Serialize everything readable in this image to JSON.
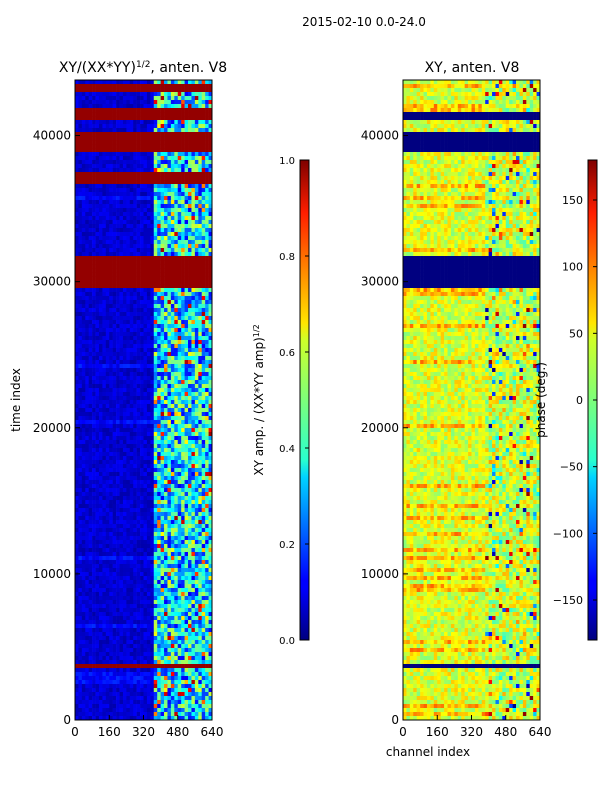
{
  "suptitle": "2015-02-10 0.0-24.0",
  "chart_data": [
    {
      "type": "heatmap",
      "title": "XY/(XX*YY)",
      "title_superscript": "1/2",
      "title_suffix": ", anten. V8",
      "xlabel": "",
      "ylabel": "time index",
      "xlim": [
        0,
        640
      ],
      "ylim": [
        0,
        43800
      ],
      "xticks": [
        "0",
        "160",
        "320",
        "480",
        "640"
      ],
      "yticks": [
        "0",
        "10000",
        "20000",
        "30000",
        "40000"
      ],
      "colormap": "jet",
      "colorbar": {
        "label": "XY amp. / (XX*YY amp)",
        "label_superscript": "1/2",
        "range": [
          0.0,
          1.0
        ],
        "ticks": [
          "0.0",
          "0.2",
          "0.4",
          "0.6",
          "0.8",
          "1.0"
        ]
      },
      "saturated_time_bands": [
        [
          3500,
          3900
        ],
        [
          29500,
          31800
        ],
        [
          36800,
          37500
        ],
        [
          38900,
          40300
        ],
        [
          41000,
          41800
        ],
        [
          43100,
          43500
        ]
      ],
      "active_channel_range": [
        370,
        640
      ]
    },
    {
      "type": "heatmap",
      "title": "XY, anten. V8",
      "xlabel": "channel index",
      "ylabel": "",
      "xlim": [
        0,
        640
      ],
      "ylim": [
        0,
        43800
      ],
      "xticks": [
        "0",
        "160",
        "320",
        "480",
        "640"
      ],
      "yticks": [
        "0",
        "10000",
        "20000",
        "30000",
        "40000"
      ],
      "colormap": "jet",
      "colorbar": {
        "label": "phase (deg.)",
        "range": [
          -180,
          180
        ],
        "ticks": [
          "150",
          "100",
          "50",
          "0",
          "−50",
          "−100",
          "−150"
        ]
      },
      "flagged_time_bands": [
        [
          3500,
          3900
        ],
        [
          29700,
          31800
        ],
        [
          38900,
          40300
        ],
        [
          41000,
          41600
        ]
      ]
    }
  ]
}
